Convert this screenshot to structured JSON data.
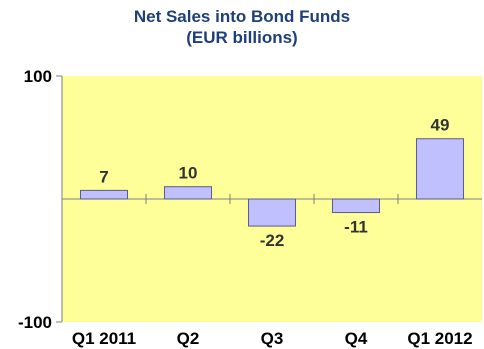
{
  "chart_data": {
    "type": "bar",
    "title": "Net Sales into Bond Funds",
    "subtitle": "(EUR billions)",
    "categories": [
      "Q1 2011",
      "Q2",
      "Q3",
      "Q4",
      "Q1 2012"
    ],
    "values": [
      7,
      10,
      -22,
      -11,
      49
    ],
    "data_labels": [
      "7",
      "10",
      "-22",
      "-11",
      "49"
    ],
    "y_ticks": [
      "100",
      "-100"
    ],
    "ylim": [
      -100,
      100
    ],
    "xlabel": "",
    "ylabel": "",
    "grid": false,
    "colors": {
      "plot_bg": "#ffff99",
      "bar_fill": "#c0c0ff",
      "bar_stroke": "#5a5a8c",
      "title": "#1f3f7a"
    }
  }
}
